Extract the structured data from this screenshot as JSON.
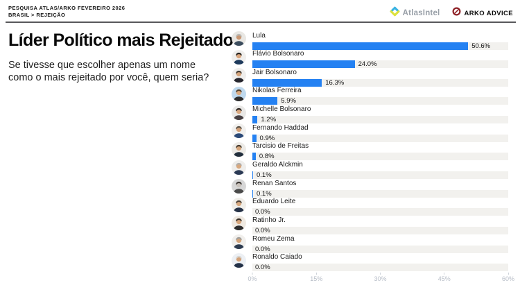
{
  "header": {
    "kicker_line1": "PESQUISA ATLAS/ARKO FEVEREIRO 2026",
    "kicker_line2": "BRASIL > REJEIÇÃO",
    "logos": {
      "atlas_text": "AtlasIntel",
      "arko_text": "ARKO ADVICE"
    }
  },
  "main": {
    "title": "Líder Político mais Rejeitado",
    "question": "Se tivesse que escolher apenas um nome como o mais rejeitado por você, quem seria?"
  },
  "chart_data": {
    "type": "bar",
    "orientation": "horizontal",
    "title": "Líder Político mais Rejeitado",
    "categories": [
      "Lula",
      "Flávio Bolsonaro",
      "Jair Bolsonaro",
      "Nikolas Ferreira",
      "Michelle Bolsonaro",
      "Fernando Haddad",
      "Tarcisio de Freitas",
      "Geraldo Alckmin",
      "Renan Santos",
      "Eduardo Leite",
      "Ratinho Jr.",
      "Romeu Zema",
      "Ronaldo Caiado"
    ],
    "values": [
      50.6,
      24.0,
      16.3,
      5.9,
      1.2,
      0.9,
      0.8,
      0.1,
      0.1,
      0.0,
      0.0,
      0.0,
      0.0
    ],
    "value_labels": [
      "50.6%",
      "24.0%",
      "16.3%",
      "5.9%",
      "1.2%",
      "0.9%",
      "0.8%",
      "0.1%",
      "0.1%",
      "0.0%",
      "0.0%",
      "0.0%",
      "0.0%"
    ],
    "xlim": [
      0,
      60
    ],
    "x_ticks": [
      "0%",
      "15%",
      "30%",
      "45%",
      "60%"
    ],
    "x_tick_values": [
      0,
      15,
      30,
      45,
      60
    ],
    "grid": false,
    "legend": false,
    "bar_color": "#2481f2",
    "track_color": "#f2f1ee"
  },
  "avatars": [
    {
      "bg": "#e9e7e3",
      "hair": "#b9b9b6",
      "suit": "#3c4d5e",
      "skin": "#c99672"
    },
    {
      "bg": "#f0efed",
      "hair": "#23201c",
      "suit": "#1e3a5c",
      "skin": "#d9a67e"
    },
    {
      "bg": "#efeeec",
      "hair": "#423a31",
      "suit": "#26262e",
      "skin": "#d4a37a"
    },
    {
      "bg": "#bfd9ee",
      "hair": "#54422e",
      "suit": "#2e2e2e",
      "skin": "#dcab80"
    },
    {
      "bg": "#e9e8e6",
      "hair": "#2b2624",
      "suit": "#474043",
      "skin": "#d9a880"
    },
    {
      "bg": "#f1f0ee",
      "hair": "#5a5248",
      "suit": "#2c4a78",
      "skin": "#d2a078"
    },
    {
      "bg": "#edebe7",
      "hair": "#473c30",
      "suit": "#222f3d",
      "skin": "#d6a67c"
    },
    {
      "bg": "#efeeec",
      "hair": "#b0afad",
      "suit": "#2b3a55",
      "skin": "#d8a87e"
    },
    {
      "bg": "#d7d7d7",
      "hair": "#393430",
      "suit": "#4a4a4a",
      "skin": "#c9c2bb"
    },
    {
      "bg": "#f0eee9",
      "hair": "#4c4136",
      "suit": "#263247",
      "skin": "#d8a87e"
    },
    {
      "bg": "#efe9e1",
      "hair": "#3a3129",
      "suit": "#2d2d2d",
      "skin": "#d7a67c"
    },
    {
      "bg": "#f1efec",
      "hair": "#9f9f9d",
      "suit": "#2e3c50",
      "skin": "#d3a47b"
    },
    {
      "bg": "#edf0f4",
      "hair": "#d6d4d0",
      "suit": "#233148",
      "skin": "#d2a178"
    }
  ]
}
